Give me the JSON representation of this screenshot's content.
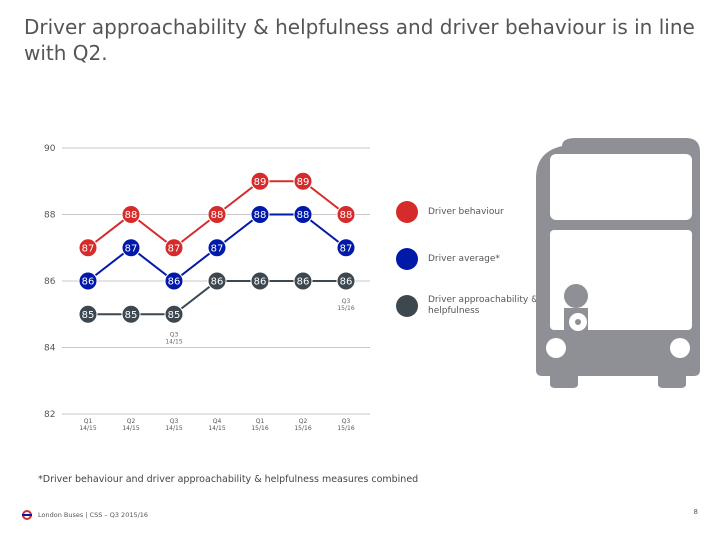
{
  "title": "Driver approachability & helpfulness and driver behaviour is in line with Q2.",
  "footnote": "*Driver behaviour and driver approachability & helpfulness measures combined",
  "footer": {
    "text": "London Buses | CSS – Q3 2015/16",
    "page": "8"
  },
  "legend": [
    {
      "label": "Driver behaviour",
      "color": "#d62b2b"
    },
    {
      "label": "Driver average*",
      "color": "#0019a8"
    },
    {
      "label": "Driver approachability & helpfulness",
      "color": "#3c4750"
    }
  ],
  "icons": {
    "bus": "bus-icon",
    "roundel": "roundel-icon"
  },
  "chart_data": {
    "type": "line",
    "categories": [
      "Q1\n14/15",
      "Q2\n14/15",
      "Q3\n14/15",
      "Q4\n14/15",
      "Q1\n15/16",
      "Q2\n15/16",
      "Q3\n15/16"
    ],
    "ylim": [
      82,
      90
    ],
    "yticks": [
      82,
      84,
      86,
      88,
      90
    ],
    "grid": true,
    "series": [
      {
        "name": "Driver behaviour",
        "color": "#d62b2b",
        "values": [
          87,
          88,
          87,
          88,
          89,
          89,
          88
        ]
      },
      {
        "name": "Driver average*",
        "color": "#0019a8",
        "values": [
          86,
          87,
          86,
          87,
          88,
          88,
          87
        ]
      },
      {
        "name": "Driver approachability & helpfulness",
        "color": "#3c4750",
        "values": [
          85,
          85,
          85,
          86,
          86,
          86,
          86
        ]
      }
    ],
    "annotations": [
      {
        "text": "Q3\n14/15",
        "x_index": 2
      },
      {
        "text": "Q3\n15/16",
        "x_index": 6
      }
    ]
  }
}
